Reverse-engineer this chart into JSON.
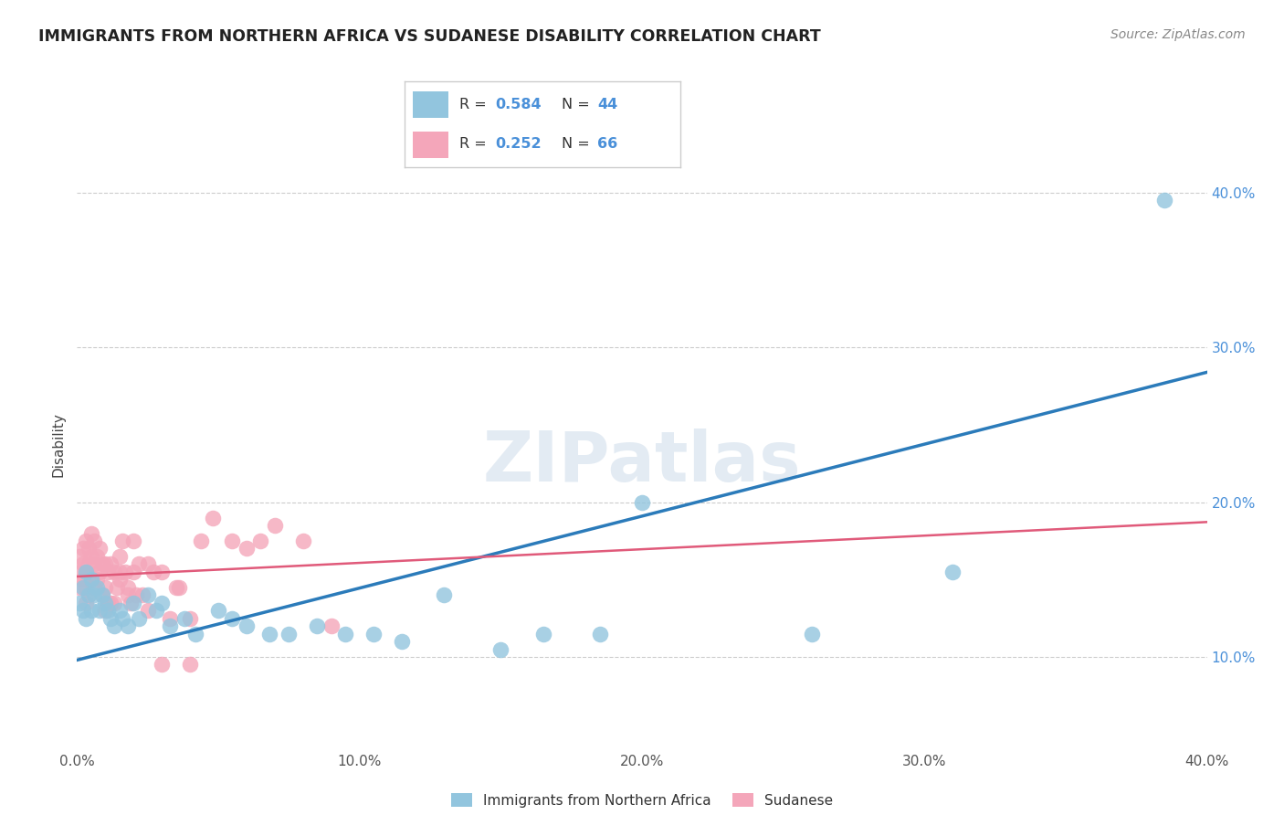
{
  "title": "IMMIGRANTS FROM NORTHERN AFRICA VS SUDANESE DISABILITY CORRELATION CHART",
  "source": "Source: ZipAtlas.com",
  "ylabel": "Disability",
  "xlim": [
    0.0,
    0.4
  ],
  "ylim": [
    0.04,
    0.435
  ],
  "yticks": [
    0.1,
    0.2,
    0.3,
    0.4
  ],
  "ytick_labels": [
    "10.0%",
    "20.0%",
    "30.0%",
    "40.0%"
  ],
  "xticks": [
    0.0,
    0.1,
    0.2,
    0.3,
    0.4
  ],
  "xtick_labels": [
    "0.0%",
    "10.0%",
    "20.0%",
    "30.0%",
    "40.0%"
  ],
  "blue_color": "#92c5de",
  "pink_color": "#f4a6ba",
  "line_blue_color": "#2b7bba",
  "line_pink_color": "#e05a7a",
  "R_blue": "0.584",
  "N_blue": "44",
  "R_pink": "0.252",
  "N_pink": "66",
  "blue_intercept": 0.098,
  "blue_slope": 0.465,
  "pink_intercept": 0.152,
  "pink_slope": 0.088,
  "watermark": "ZIPatlas",
  "blue_x": [
    0.001,
    0.002,
    0.002,
    0.003,
    0.003,
    0.004,
    0.005,
    0.005,
    0.006,
    0.007,
    0.008,
    0.009,
    0.01,
    0.011,
    0.012,
    0.013,
    0.015,
    0.016,
    0.018,
    0.02,
    0.022,
    0.025,
    0.028,
    0.03,
    0.033,
    0.038,
    0.042,
    0.05,
    0.055,
    0.06,
    0.068,
    0.075,
    0.085,
    0.095,
    0.105,
    0.115,
    0.13,
    0.15,
    0.165,
    0.185,
    0.2,
    0.26,
    0.31,
    0.385
  ],
  "blue_y": [
    0.135,
    0.145,
    0.13,
    0.155,
    0.125,
    0.14,
    0.15,
    0.13,
    0.14,
    0.145,
    0.13,
    0.14,
    0.135,
    0.13,
    0.125,
    0.12,
    0.13,
    0.125,
    0.12,
    0.135,
    0.125,
    0.14,
    0.13,
    0.135,
    0.12,
    0.125,
    0.115,
    0.13,
    0.125,
    0.12,
    0.115,
    0.115,
    0.12,
    0.115,
    0.115,
    0.11,
    0.14,
    0.105,
    0.115,
    0.115,
    0.2,
    0.115,
    0.155,
    0.395
  ],
  "pink_x": [
    0.001,
    0.001,
    0.001,
    0.002,
    0.002,
    0.002,
    0.003,
    0.003,
    0.003,
    0.003,
    0.004,
    0.004,
    0.004,
    0.005,
    0.005,
    0.005,
    0.006,
    0.006,
    0.006,
    0.007,
    0.007,
    0.008,
    0.008,
    0.009,
    0.009,
    0.01,
    0.01,
    0.011,
    0.011,
    0.012,
    0.013,
    0.013,
    0.014,
    0.015,
    0.015,
    0.016,
    0.017,
    0.018,
    0.019,
    0.02,
    0.021,
    0.022,
    0.023,
    0.025,
    0.027,
    0.03,
    0.033,
    0.036,
    0.04,
    0.044,
    0.048,
    0.055,
    0.06,
    0.065,
    0.07,
    0.08,
    0.09,
    0.01,
    0.012,
    0.015,
    0.018,
    0.02,
    0.025,
    0.03,
    0.035,
    0.04
  ],
  "pink_y": [
    0.155,
    0.145,
    0.165,
    0.16,
    0.17,
    0.15,
    0.175,
    0.155,
    0.145,
    0.135,
    0.17,
    0.16,
    0.14,
    0.18,
    0.165,
    0.15,
    0.175,
    0.16,
    0.145,
    0.165,
    0.15,
    0.17,
    0.155,
    0.16,
    0.14,
    0.16,
    0.145,
    0.155,
    0.135,
    0.16,
    0.155,
    0.135,
    0.145,
    0.165,
    0.15,
    0.175,
    0.155,
    0.145,
    0.135,
    0.155,
    0.14,
    0.16,
    0.14,
    0.16,
    0.155,
    0.155,
    0.125,
    0.145,
    0.125,
    0.175,
    0.19,
    0.175,
    0.17,
    0.175,
    0.185,
    0.175,
    0.12,
    0.13,
    0.135,
    0.155,
    0.14,
    0.175,
    0.13,
    0.095,
    0.145,
    0.095
  ]
}
